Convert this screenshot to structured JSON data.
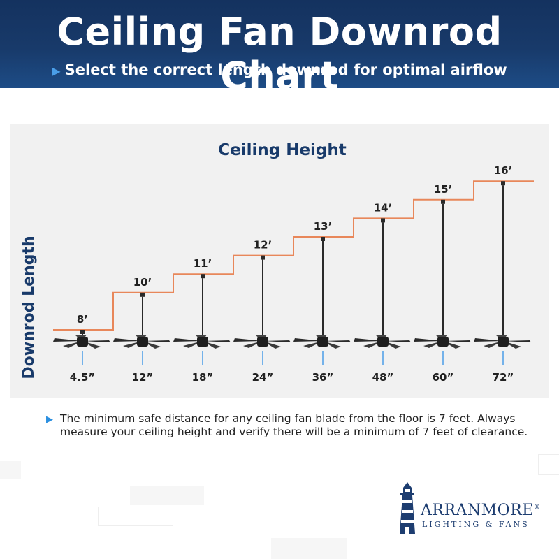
{
  "header": {
    "title": "Ceiling Fan Downrod Chart",
    "subtitle": "Select the correct length downrod for optimal airflow"
  },
  "colors": {
    "banner": "#183a6a",
    "step_line": "#e8875a",
    "title_text": "#183a6a",
    "downrod": "#2a2a2a",
    "tick": "#4a9ee8"
  },
  "chart_data": {
    "type": "step",
    "title": "Ceiling Height",
    "ylabel": "Downrod Length",
    "categories": [
      "4.5”",
      "12”",
      "18”",
      "24”",
      "36”",
      "48”",
      "60”",
      "72”"
    ],
    "ceiling_labels": [
      "8’",
      "10’",
      "11’",
      "12’",
      "13’",
      "14’",
      "15’",
      "16’"
    ],
    "ceiling_height_ft": [
      8,
      10,
      11,
      12,
      13,
      14,
      15,
      16
    ],
    "downrod_length_in": [
      4.5,
      12,
      18,
      24,
      36,
      48,
      60,
      72
    ]
  },
  "note": {
    "text": "The minimum safe distance for any ceiling fan blade from the floor is 7 feet.  Always measure your ceiling height and verify there will be a minimum of 7 feet of clearance."
  },
  "logo": {
    "name": "ARRANMORE",
    "registered": "®",
    "tagline": "LIGHTING & FANS",
    "icon": "lighthouse-icon"
  }
}
